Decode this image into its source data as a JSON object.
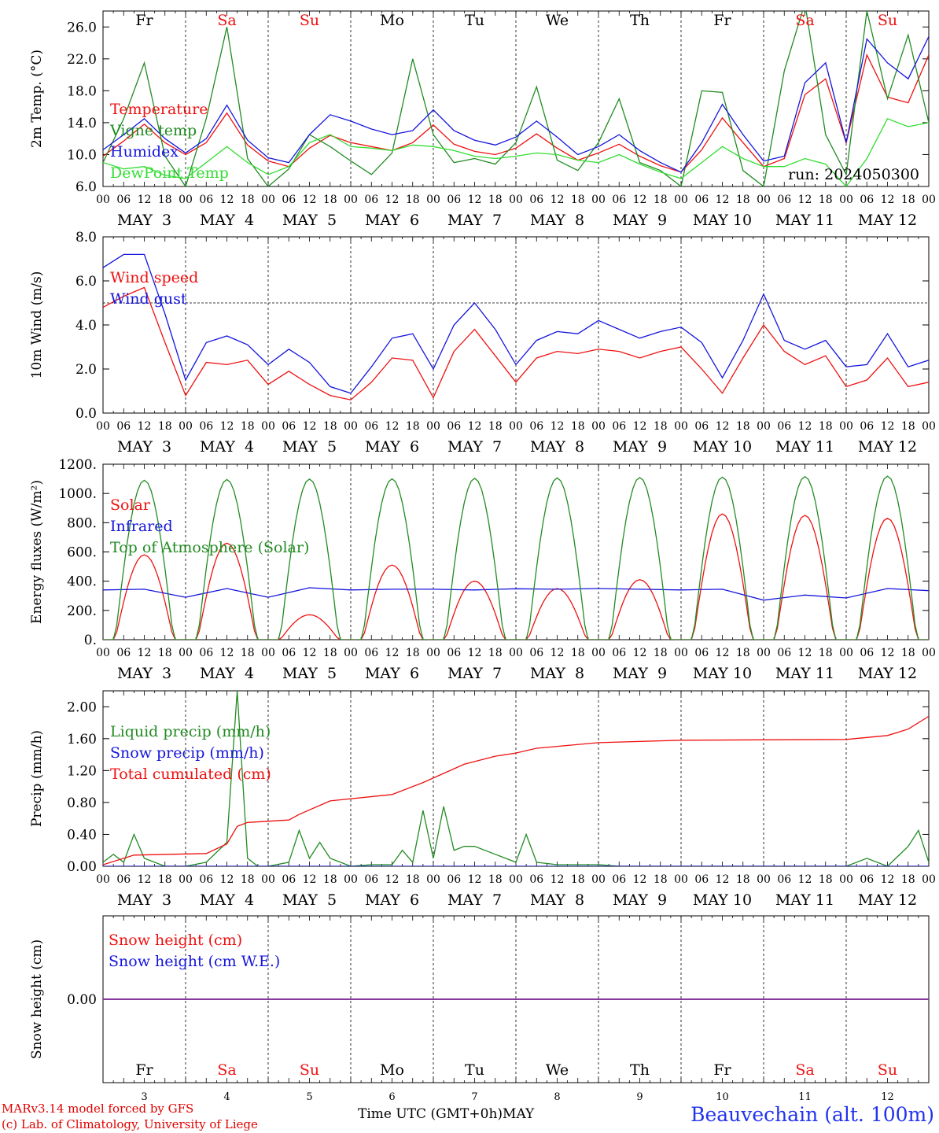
{
  "chart_data": [
    {
      "type": "line",
      "ylabel": "2m Temp. (°C)",
      "yticks": [
        "6.0",
        "10.0",
        "14.0",
        "18.0",
        "22.0",
        "26.0"
      ],
      "ylim": [
        6,
        28
      ],
      "xlim": [
        0,
        240
      ],
      "top_days": [
        {
          "label": "Fr",
          "color": "#000000"
        },
        {
          "label": "Sa",
          "color": "#ee1111"
        },
        {
          "label": "Su",
          "color": "#ee1111"
        },
        {
          "label": "Mo",
          "color": "#000000"
        },
        {
          "label": "Tu",
          "color": "#000000"
        },
        {
          "label": "We",
          "color": "#000000"
        },
        {
          "label": "Th",
          "color": "#000000"
        },
        {
          "label": "Fr",
          "color": "#000000"
        },
        {
          "label": "Sa",
          "color": "#ee1111"
        },
        {
          "label": "Su",
          "color": "#ee1111"
        }
      ],
      "annotation": "run: 2024050300",
      "series": [
        {
          "name": "Temperature",
          "color": "#ee1111",
          "x": [
            0,
            6,
            12,
            18,
            24,
            30,
            36,
            42,
            48,
            54,
            60,
            66,
            72,
            78,
            84,
            90,
            96,
            102,
            108,
            114,
            120,
            126,
            132,
            138,
            144,
            150,
            156,
            162,
            168,
            174,
            180,
            186,
            192,
            198,
            204,
            210,
            216,
            222,
            228,
            234,
            240
          ],
          "y": [
            9.8,
            11.7,
            13.8,
            11.5,
            10.0,
            11.5,
            15.2,
            11.2,
            9.2,
            8.5,
            10.8,
            12.4,
            11.5,
            11.0,
            10.5,
            11.5,
            13.7,
            11.3,
            10.4,
            10.0,
            10.8,
            12.6,
            10.8,
            9.3,
            10.2,
            11.3,
            9.8,
            8.6,
            7.8,
            10.6,
            14.6,
            11.5,
            8.5,
            9.5,
            17.5,
            19.5,
            11.5,
            22.5,
            17.2,
            16.5,
            22.5
          ]
        },
        {
          "name": "Vigne temp",
          "color": "#228b22",
          "x": [
            0,
            6,
            12,
            18,
            24,
            30,
            36,
            42,
            48,
            54,
            60,
            66,
            72,
            78,
            84,
            90,
            96,
            102,
            108,
            114,
            120,
            126,
            132,
            138,
            144,
            150,
            156,
            162,
            168,
            174,
            180,
            186,
            192,
            198,
            204,
            210,
            216,
            222,
            228,
            234,
            240
          ],
          "y": [
            9.0,
            14.5,
            21.5,
            9.8,
            6.0,
            14.5,
            26.0,
            9.5,
            6.0,
            8.2,
            12.5,
            11.0,
            9.2,
            7.5,
            10.2,
            22.0,
            12.5,
            9.0,
            9.5,
            8.8,
            11.5,
            18.5,
            9.3,
            8.0,
            11.5,
            17.0,
            9.0,
            8.0,
            6.0,
            18.0,
            17.8,
            8.0,
            6.0,
            20.5,
            29.0,
            12.5,
            7.5,
            28.0,
            17.0,
            25.0,
            14.0
          ]
        },
        {
          "name": "Humidex",
          "color": "#1515dd",
          "x": [
            0,
            6,
            12,
            18,
            24,
            30,
            36,
            42,
            48,
            54,
            60,
            66,
            72,
            78,
            84,
            90,
            96,
            102,
            108,
            114,
            120,
            126,
            132,
            138,
            144,
            150,
            156,
            162,
            168,
            174,
            180,
            186,
            192,
            198,
            204,
            210,
            216,
            222,
            228,
            234,
            240
          ],
          "y": [
            10.6,
            12.5,
            14.5,
            12.0,
            10.2,
            12.0,
            16.2,
            11.8,
            9.6,
            9.0,
            12.5,
            15.0,
            14.2,
            13.2,
            12.5,
            13.0,
            15.6,
            13.0,
            11.8,
            11.2,
            12.2,
            14.2,
            12.2,
            10.0,
            11.0,
            12.5,
            10.5,
            9.0,
            7.8,
            11.5,
            16.3,
            12.5,
            9.2,
            9.8,
            19.0,
            21.5,
            11.5,
            24.5,
            21.5,
            19.5,
            24.8
          ]
        },
        {
          "name": "DewPoint Temp",
          "color": "#33dd33",
          "x": [
            0,
            6,
            12,
            18,
            24,
            30,
            36,
            42,
            48,
            54,
            60,
            66,
            72,
            78,
            84,
            90,
            96,
            102,
            108,
            114,
            120,
            126,
            132,
            138,
            144,
            150,
            156,
            162,
            168,
            174,
            180,
            186,
            192,
            198,
            204,
            210,
            216,
            222,
            228,
            234,
            240
          ],
          "y": [
            9.0,
            8.2,
            8.5,
            7.4,
            7.0,
            9.0,
            11.0,
            9.0,
            7.5,
            8.5,
            11.5,
            12.5,
            11.0,
            10.8,
            10.5,
            11.2,
            11.0,
            10.5,
            9.8,
            9.5,
            9.8,
            10.2,
            10.0,
            9.3,
            9.0,
            10.0,
            8.8,
            7.8,
            7.0,
            9.0,
            11.0,
            9.5,
            8.5,
            8.5,
            9.5,
            8.8,
            6.0,
            9.5,
            14.5,
            13.5,
            14.0
          ]
        }
      ]
    },
    {
      "type": "line",
      "ylabel": "10m Wind (m/s)",
      "yticks": [
        "0.0",
        "2.0",
        "4.0",
        "6.0",
        "8.0"
      ],
      "ylim": [
        0,
        8
      ],
      "xlim": [
        0,
        240
      ],
      "reference_line": 5,
      "series": [
        {
          "name": "Wind speed",
          "color": "#ee1111",
          "x": [
            0,
            6,
            12,
            18,
            24,
            30,
            36,
            42,
            48,
            54,
            60,
            66,
            72,
            78,
            84,
            90,
            96,
            102,
            108,
            114,
            120,
            126,
            132,
            138,
            144,
            150,
            156,
            162,
            168,
            174,
            180,
            186,
            192,
            198,
            204,
            210,
            216,
            222,
            228,
            234,
            240
          ],
          "y": [
            4.8,
            5.3,
            5.7,
            3.2,
            0.8,
            2.3,
            2.2,
            2.4,
            1.3,
            1.9,
            1.3,
            0.8,
            0.6,
            1.4,
            2.5,
            2.4,
            0.7,
            2.8,
            3.8,
            2.6,
            1.4,
            2.5,
            2.8,
            2.7,
            2.9,
            2.8,
            2.5,
            2.8,
            3.0,
            2.0,
            0.9,
            2.5,
            4.0,
            2.8,
            2.2,
            2.6,
            1.2,
            1.5,
            2.5,
            1.2,
            1.4
          ]
        },
        {
          "name": "Wind gust",
          "color": "#1515dd",
          "x": [
            0,
            6,
            12,
            18,
            24,
            30,
            36,
            42,
            48,
            54,
            60,
            66,
            72,
            78,
            84,
            90,
            96,
            102,
            108,
            114,
            120,
            126,
            132,
            138,
            144,
            150,
            156,
            162,
            168,
            174,
            180,
            186,
            192,
            198,
            204,
            210,
            216,
            222,
            228,
            234,
            240
          ],
          "y": [
            6.6,
            7.2,
            7.2,
            4.5,
            1.5,
            3.2,
            3.5,
            3.1,
            2.2,
            2.9,
            2.3,
            1.2,
            0.9,
            2.1,
            3.4,
            3.6,
            2.0,
            4.0,
            5.0,
            3.8,
            2.2,
            3.3,
            3.7,
            3.6,
            4.2,
            3.8,
            3.4,
            3.7,
            3.9,
            3.2,
            1.6,
            3.3,
            5.4,
            3.3,
            2.9,
            3.3,
            2.1,
            2.2,
            3.6,
            2.1,
            2.4
          ]
        }
      ]
    },
    {
      "type": "line",
      "ylabel": "Energy fluxes (W/m²)",
      "yticks": [
        "0.",
        "200.",
        "400.",
        "600.",
        "800.",
        "1000.",
        "1200."
      ],
      "ylim": [
        0,
        1200
      ],
      "xlim": [
        0,
        240
      ],
      "series": [
        {
          "name": "Solar",
          "color": "#ee1111",
          "peaks": [
            {
              "day": 0,
              "peak": 580
            },
            {
              "day": 1,
              "peak": 660
            },
            {
              "day": 2,
              "peak": 170
            },
            {
              "day": 3,
              "peak": 510
            },
            {
              "day": 4,
              "peak": 400
            },
            {
              "day": 5,
              "peak": 350
            },
            {
              "day": 6,
              "peak": 410
            },
            {
              "day": 7,
              "peak": 860
            },
            {
              "day": 8,
              "peak": 850
            },
            {
              "day": 9,
              "peak": 830
            }
          ]
        },
        {
          "name": "Infrared",
          "color": "#1515dd",
          "x": [
            0,
            12,
            24,
            36,
            48,
            60,
            72,
            84,
            96,
            108,
            120,
            132,
            144,
            156,
            168,
            180,
            192,
            204,
            216,
            228,
            240
          ],
          "y": [
            340,
            345,
            290,
            350,
            290,
            355,
            340,
            345,
            345,
            340,
            348,
            345,
            350,
            345,
            340,
            345,
            270,
            305,
            285,
            350,
            335
          ]
        },
        {
          "name": "Top of Atmosphere (Solar)",
          "color": "#228b22",
          "peaks": [
            {
              "day": 0,
              "peak": 1090
            },
            {
              "day": 1,
              "peak": 1095
            },
            {
              "day": 2,
              "peak": 1098
            },
            {
              "day": 3,
              "peak": 1100
            },
            {
              "day": 4,
              "peak": 1103
            },
            {
              "day": 5,
              "peak": 1106
            },
            {
              "day": 6,
              "peak": 1109
            },
            {
              "day": 7,
              "peak": 1112
            },
            {
              "day": 8,
              "peak": 1115
            },
            {
              "day": 9,
              "peak": 1118
            }
          ]
        }
      ]
    },
    {
      "type": "line",
      "ylabel": "Precip (mm/h)",
      "yticks": [
        "0.00",
        "0.40",
        "0.80",
        "1.20",
        "1.60",
        "2.00"
      ],
      "ylim": [
        0,
        2.2
      ],
      "xlim": [
        0,
        240
      ],
      "series": [
        {
          "name": "Liquid precip (mm/h)",
          "color": "#228b22",
          "x": [
            0,
            3,
            6,
            9,
            12,
            18,
            24,
            30,
            36,
            39,
            42,
            45,
            48,
            54,
            57,
            60,
            63,
            66,
            69,
            72,
            78,
            84,
            87,
            90,
            93,
            96,
            99,
            102,
            105,
            108,
            114,
            120,
            123,
            126,
            132,
            138,
            144,
            150,
            168,
            174,
            180,
            192,
            216,
            222,
            228,
            234,
            237,
            240
          ],
          "y": [
            0.05,
            0.15,
            0.05,
            0.4,
            0.1,
            0.0,
            0.0,
            0.05,
            0.3,
            2.2,
            0.1,
            0.0,
            0.0,
            0.05,
            0.45,
            0.1,
            0.3,
            0.1,
            0.05,
            0.0,
            0.02,
            0.02,
            0.2,
            0.05,
            0.7,
            0.1,
            0.75,
            0.2,
            0.25,
            0.25,
            0.15,
            0.05,
            0.4,
            0.05,
            0.02,
            0.02,
            0.02,
            0.0,
            0.0,
            0.0,
            0.0,
            0.0,
            0.0,
            0.1,
            0.0,
            0.25,
            0.45,
            0.05
          ]
        },
        {
          "name": "Snow precip (mm/h)",
          "color": "#1515dd",
          "x": [
            0,
            240
          ],
          "y": [
            0.0,
            0.0
          ]
        },
        {
          "name": "Total cumulated (cm)",
          "color": "#ee1111",
          "x": [
            0,
            9,
            30,
            36,
            39,
            42,
            54,
            57,
            66,
            84,
            93,
            105,
            114,
            120,
            126,
            144,
            168,
            216,
            228,
            234,
            240
          ],
          "y": [
            0.02,
            0.14,
            0.16,
            0.28,
            0.5,
            0.55,
            0.58,
            0.65,
            0.82,
            0.9,
            1.05,
            1.28,
            1.38,
            1.42,
            1.48,
            1.55,
            1.58,
            1.59,
            1.64,
            1.72,
            1.88
          ]
        }
      ]
    },
    {
      "type": "line",
      "ylabel": "Snow height (cm)",
      "yticks": [
        "0.00"
      ],
      "ylim": [
        -1,
        1
      ],
      "xlim": [
        0,
        240
      ],
      "series": [
        {
          "name": "Snow height (cm)",
          "color": "#ee1111",
          "x": [
            0,
            240
          ],
          "y": [
            0,
            0
          ]
        },
        {
          "name": "Snow height (cm W.E.)",
          "color": "#1515dd",
          "x": [
            0,
            240
          ],
          "y": [
            0,
            0
          ]
        }
      ]
    }
  ],
  "xaxis": {
    "hour_ticks": [
      "00",
      "06",
      "12",
      "18"
    ],
    "final_tick": "00",
    "date_labels": [
      "MAY  3",
      "MAY  4",
      "MAY  5",
      "MAY  6",
      "MAY  7",
      "MAY  8",
      "MAY  9",
      "MAY 10",
      "MAY 11",
      "MAY 12"
    ],
    "bottom_day_numbers": [
      "3",
      "4",
      "5",
      "6",
      "7",
      "8",
      "9",
      "10",
      "11",
      "12"
    ]
  },
  "footer": {
    "credit_line1": "MARv3.14 model forced by GFS",
    "credit_line2": "(c) Lab. of Climatology, University of Liege",
    "xaxis_title": "Time UTC (GMT+0h)MAY",
    "station": "Beauvechain (alt. 100m)"
  }
}
